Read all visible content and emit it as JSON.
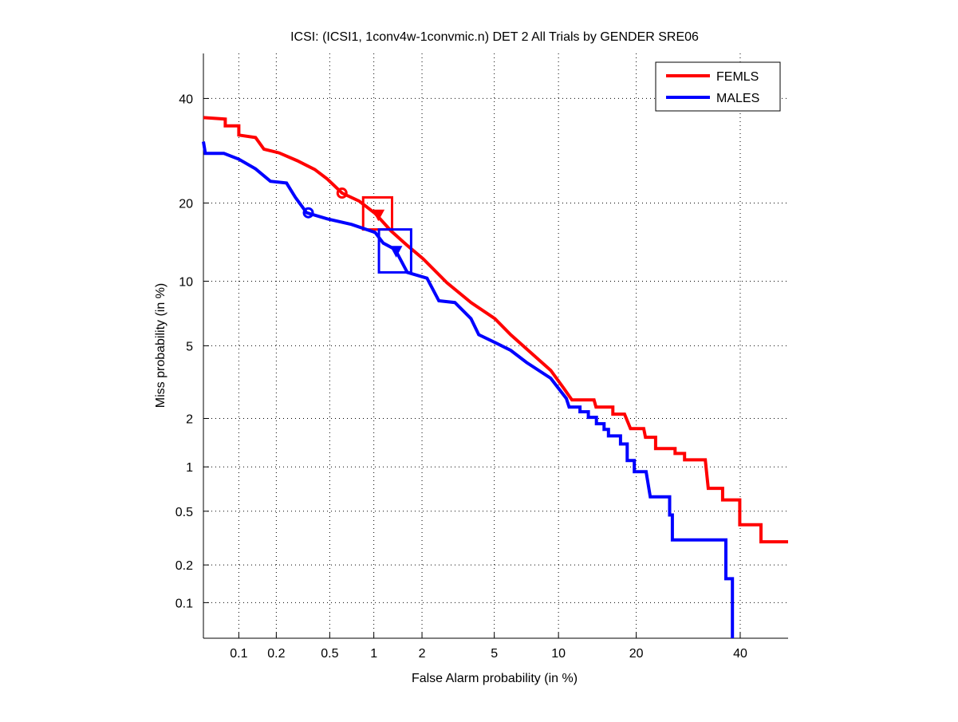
{
  "chart_data": {
    "type": "line",
    "title": "ICSI: (ICSI1, 1conv4w-1convmic.n) DET 2 All Trials by GENDER SRE06",
    "xlabel": "False Alarm probability (in %)",
    "ylabel": "Miss probability (in %)",
    "xscale": "probit",
    "yscale": "probit",
    "xlim": [
      0.05,
      50.7
    ],
    "ylim": [
      0.05,
      50
    ],
    "xticks": [
      0.1,
      0.2,
      0.5,
      1,
      2,
      5,
      10,
      20,
      40
    ],
    "xtick_labels": [
      "0.1",
      "0.2",
      "0.5",
      "1",
      "2",
      "5",
      "10",
      "20",
      "40"
    ],
    "yticks": [
      0.1,
      0.2,
      0.5,
      1,
      2,
      5,
      10,
      20,
      40
    ],
    "ytick_labels": [
      "0.1",
      "0.2",
      "0.5",
      "1",
      "2",
      "5",
      "10",
      "20",
      "40"
    ],
    "grid": true,
    "legend_position": "top-right",
    "series": [
      {
        "name": "FEMLS",
        "color": "#ff0000",
        "points": [
          [
            0.05,
            35.9
          ],
          [
            0.077,
            35.6
          ],
          [
            0.077,
            34.2
          ],
          [
            0.1,
            34.2
          ],
          [
            0.1,
            32.3
          ],
          [
            0.137,
            31.8
          ],
          [
            0.16,
            29.5
          ],
          [
            0.21,
            28.8
          ],
          [
            0.29,
            27.3
          ],
          [
            0.39,
            25.7
          ],
          [
            0.48,
            24.0
          ],
          [
            0.61,
            21.6
          ],
          [
            0.8,
            20.3
          ],
          [
            1.02,
            18.4
          ],
          [
            1.29,
            15.9
          ],
          [
            1.63,
            14.0
          ],
          [
            2.03,
            12.4
          ],
          [
            2.79,
            9.85
          ],
          [
            3.78,
            8.05
          ],
          [
            5.03,
            6.79
          ],
          [
            6.03,
            5.68
          ],
          [
            7.19,
            4.82
          ],
          [
            9.25,
            3.73
          ],
          [
            10.5,
            3.0
          ],
          [
            11.4,
            2.56
          ],
          [
            14.0,
            2.56
          ],
          [
            14.25,
            2.33
          ],
          [
            16.5,
            2.33
          ],
          [
            16.5,
            2.12
          ],
          [
            18.2,
            2.12
          ],
          [
            19.1,
            1.74
          ],
          [
            21.2,
            1.74
          ],
          [
            21.5,
            1.54
          ],
          [
            23.2,
            1.54
          ],
          [
            23.2,
            1.31
          ],
          [
            26.7,
            1.31
          ],
          [
            26.7,
            1.22
          ],
          [
            28.5,
            1.22
          ],
          [
            28.5,
            1.11
          ],
          [
            32.6,
            1.11
          ],
          [
            33.2,
            0.72
          ],
          [
            36.2,
            0.72
          ],
          [
            36.2,
            0.6
          ],
          [
            39.9,
            0.6
          ],
          [
            39.9,
            0.4
          ],
          [
            44.6,
            0.4
          ],
          [
            44.6,
            0.3
          ],
          [
            50.7,
            0.3
          ]
        ],
        "min_dcf_point": [
          0.61,
          21.6
        ],
        "actual_dcf_point": [
          1.07,
          18.2
        ],
        "confidence_box": {
          "fa": [
            0.85,
            1.31
          ],
          "miss": [
            16.1,
            20.9
          ]
        }
      },
      {
        "name": "MALES",
        "color": "#0000ff",
        "points": [
          [
            0.05,
            31.0
          ],
          [
            0.052,
            28.7
          ],
          [
            0.075,
            28.7
          ],
          [
            0.1,
            27.6
          ],
          [
            0.137,
            25.8
          ],
          [
            0.18,
            23.6
          ],
          [
            0.24,
            23.3
          ],
          [
            0.28,
            20.9
          ],
          [
            0.34,
            18.5
          ],
          [
            0.48,
            17.6
          ],
          [
            0.71,
            16.8
          ],
          [
            1.02,
            15.7
          ],
          [
            1.15,
            14.3
          ],
          [
            1.37,
            13.5
          ],
          [
            1.63,
            10.9
          ],
          [
            2.14,
            10.3
          ],
          [
            2.51,
            8.2
          ],
          [
            3.09,
            8.05
          ],
          [
            3.78,
            6.79
          ],
          [
            4.16,
            5.68
          ],
          [
            5.03,
            5.2
          ],
          [
            6.03,
            4.74
          ],
          [
            7.19,
            4.1
          ],
          [
            9.25,
            3.38
          ],
          [
            10.8,
            2.61
          ],
          [
            11.1,
            2.33
          ],
          [
            12.3,
            2.33
          ],
          [
            12.3,
            2.19
          ],
          [
            13.3,
            2.19
          ],
          [
            13.3,
            2.03
          ],
          [
            14.3,
            2.03
          ],
          [
            14.3,
            1.86
          ],
          [
            15.3,
            1.86
          ],
          [
            15.3,
            1.72
          ],
          [
            15.9,
            1.72
          ],
          [
            15.9,
            1.57
          ],
          [
            17.6,
            1.57
          ],
          [
            17.6,
            1.4
          ],
          [
            18.6,
            1.4
          ],
          [
            18.6,
            1.1
          ],
          [
            19.7,
            1.1
          ],
          [
            19.7,
            0.93
          ],
          [
            21.6,
            0.93
          ],
          [
            22.3,
            0.63
          ],
          [
            25.7,
            0.63
          ],
          [
            25.7,
            0.47
          ],
          [
            26.2,
            0.47
          ],
          [
            26.2,
            0.31
          ],
          [
            36.9,
            0.31
          ],
          [
            36.9,
            0.156
          ],
          [
            38.3,
            0.156
          ],
          [
            38.3,
            0.05
          ]
        ],
        "min_dcf_point": [
          0.35,
          18.5
        ],
        "actual_dcf_point": [
          1.39,
          13.3
        ],
        "confidence_box": {
          "fa": [
            1.08,
            1.72
          ],
          "miss": [
            10.9,
            16.1
          ]
        }
      }
    ]
  }
}
